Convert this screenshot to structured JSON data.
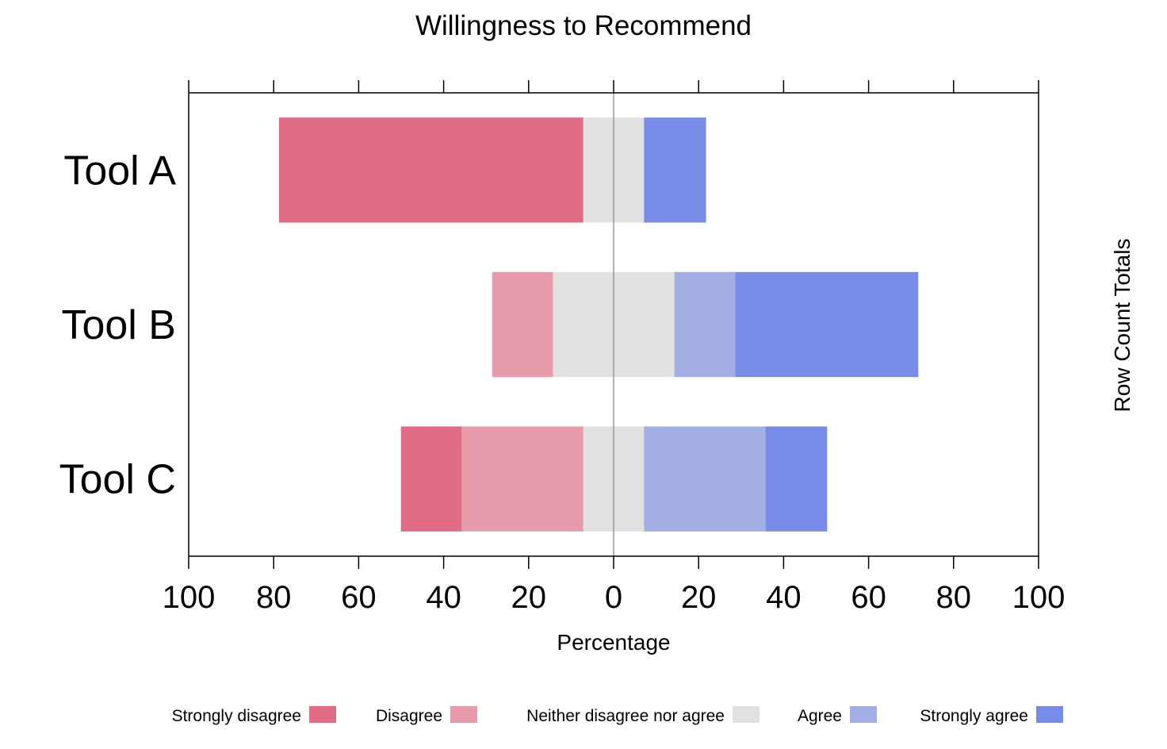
{
  "chart_data": {
    "type": "bar",
    "orientation": "horizontal",
    "stacking": "diverging",
    "title": "Willingness to Recommend",
    "xlabel": "Percentage",
    "right_label": "Row Count Totals",
    "xlim": [
      -100,
      100
    ],
    "xticks": [
      -100,
      -80,
      -60,
      -40,
      -20,
      0,
      20,
      40,
      60,
      80,
      100
    ],
    "xtick_labels": [
      "100",
      "80",
      "60",
      "40",
      "20",
      "0",
      "20",
      "40",
      "60",
      "80",
      "100"
    ],
    "categories": [
      "Tool A",
      "Tool B",
      "Tool C"
    ],
    "series": [
      {
        "name": "Strongly disagree",
        "color": "#E16C86",
        "values": [
          71.6,
          0,
          14.3
        ]
      },
      {
        "name": "Disagree",
        "color": "#E79BAA",
        "values": [
          0,
          14.3,
          28.6
        ]
      },
      {
        "name": "Neither disagree nor agree",
        "color": "#E1E1E1",
        "values": [
          14.3,
          28.6,
          14.3
        ]
      },
      {
        "name": "Agree",
        "color": "#A3AEE5",
        "values": [
          0,
          14.3,
          28.6
        ]
      },
      {
        "name": "Strongly agree",
        "color": "#788CE7",
        "values": [
          14.6,
          43.1,
          14.5
        ]
      }
    ],
    "legend_position": "bottom",
    "zero_line_color": "#999999"
  }
}
